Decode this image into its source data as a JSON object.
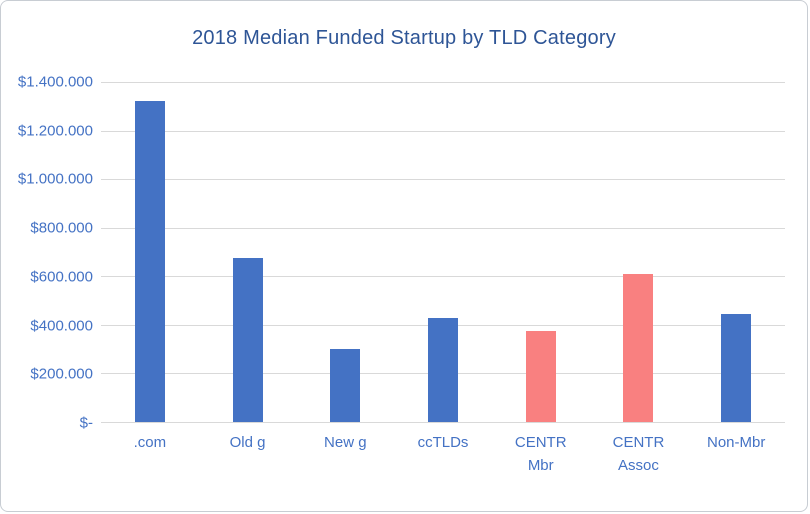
{
  "chart_data": {
    "type": "bar",
    "title": "2018 Median Funded Startup by TLD Category",
    "categories": [
      ".com",
      "Old g",
      "New g",
      "ccTLDs",
      "CENTR\nMbr",
      "CENTR\nAssoc",
      "Non-Mbr"
    ],
    "values": [
      1320000,
      675000,
      300000,
      430000,
      375000,
      610000,
      445000
    ],
    "bar_colors": [
      "#4472c4",
      "#4472c4",
      "#4472c4",
      "#4472c4",
      "#f98080",
      "#f98080",
      "#4472c4"
    ],
    "xlabel": "",
    "ylabel": "",
    "ylim": [
      0,
      1400000
    ],
    "yticks": [
      {
        "label": "$-",
        "value": 0
      },
      {
        "label": "$200.000",
        "value": 200000
      },
      {
        "label": "$400.000",
        "value": 400000
      },
      {
        "label": "$600.000",
        "value": 600000
      },
      {
        "label": "$800.000",
        "value": 800000
      },
      {
        "label": "$1.000.000",
        "value": 1000000
      },
      {
        "label": "$1.200.000",
        "value": 1200000
      },
      {
        "label": "$1.400.000",
        "value": 1400000
      }
    ],
    "grid": true,
    "legend": false,
    "colors": {
      "primary_bar": "#4472c4",
      "highlight_bar": "#f98080",
      "title_text": "#2e5596",
      "axis_text": "#4472c4",
      "gridline": "#d9d9d9"
    }
  }
}
